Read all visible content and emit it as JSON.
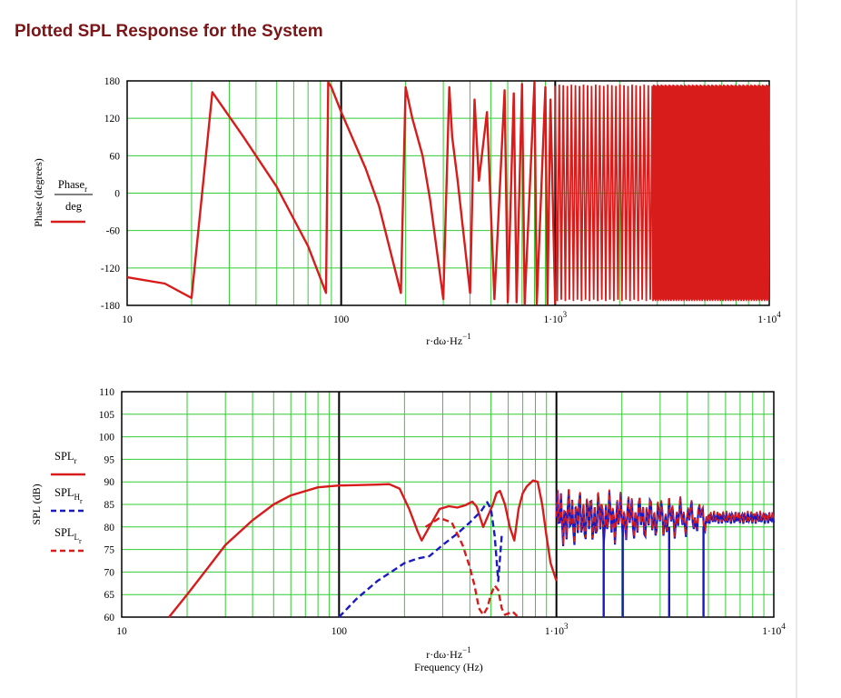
{
  "page_title": "Plotted SPL Response for the System",
  "colors": {
    "red": "#d81b1b",
    "blue": "#1a1ac0",
    "grid": "#33cc33",
    "decade": "#000000"
  },
  "chart_data": [
    {
      "type": "line",
      "xscale": "log",
      "xlim": [
        10,
        10000
      ],
      "ylim": [
        -180,
        180
      ],
      "yticks": [
        "180",
        "120",
        "60",
        "0",
        "-60",
        "-120",
        "-180"
      ],
      "xticks": [
        "10",
        "100",
        "1·10",
        "1·10"
      ],
      "xtick_exp": [
        "",
        "",
        "3",
        "4"
      ],
      "xlabel": "r·dω·Hz",
      "xlabel_exp": "−1",
      "ylabel": "Phase (degrees)",
      "legend": {
        "num": "Phase",
        "num_sub": "r",
        "den": "deg"
      },
      "series": [
        {
          "name": "Phase",
          "color": "#d81b1b",
          "x": [
            10,
            15,
            20,
            25,
            35,
            50,
            70,
            85,
            87,
            90,
            100,
            130,
            150,
            190,
            200,
            215,
            240,
            260,
            300,
            320,
            330,
            350,
            400,
            420,
            440,
            480,
            520,
            580,
            600,
            640,
            660,
            700,
            720,
            800,
            820,
            900,
            920,
            950,
            1000
          ],
          "y": [
            -135,
            -145,
            -168,
            162,
            90,
            10,
            -85,
            -160,
            178,
            170,
            130,
            40,
            -20,
            -160,
            170,
            120,
            60,
            -10,
            -170,
            170,
            90,
            20,
            -160,
            150,
            20,
            130,
            -170,
            165,
            -175,
            160,
            -175,
            175,
            -178,
            178,
            -178,
            170,
            -178,
            150,
            -178
          ]
        }
      ]
    },
    {
      "type": "line",
      "xscale": "log",
      "xlim": [
        10,
        10000
      ],
      "ylim": [
        60,
        110
      ],
      "yticks": [
        "110",
        "105",
        "100",
        "95",
        "90",
        "85",
        "80",
        "75",
        "70",
        "65",
        "60"
      ],
      "xticks": [
        "10",
        "100",
        "1·10",
        "1·10"
      ],
      "xtick_exp": [
        "",
        "",
        "3",
        "4"
      ],
      "xlabel": "r·dω·Hz",
      "xlabel_exp": "−1",
      "xlabel2": "Frequency (Hz)",
      "ylabel": "SPL (dB)",
      "legend": [
        {
          "label": "SPL",
          "sub": "r",
          "subsub": "",
          "color": "#d81b1b",
          "dash": false
        },
        {
          "label": "SPL",
          "sub": "H",
          "subsub": "r",
          "color": "#1a1ac0",
          "dash": true
        },
        {
          "label": "SPL",
          "sub": "L",
          "subsub": "r",
          "color": "#d81b1b",
          "dash": true
        }
      ],
      "series": [
        {
          "name": "SPL",
          "color": "#d81b1b",
          "dash": false,
          "x": [
            16.5,
            20,
            25,
            30,
            40,
            50,
            60,
            80,
            100,
            150,
            170,
            190,
            210,
            230,
            240,
            260,
            290,
            320,
            350,
            380,
            410,
            430,
            460,
            490,
            510,
            530,
            550,
            580,
            610,
            640,
            670,
            700,
            730,
            780,
            820,
            860,
            900,
            940,
            1000
          ],
          "y": [
            60,
            65,
            71,
            76,
            81.5,
            85,
            87,
            88.8,
            89.2,
            89.4,
            89.5,
            88.5,
            84,
            79,
            77,
            80,
            84,
            84.6,
            84.3,
            84.8,
            85.6,
            84.5,
            80,
            83,
            85,
            87.5,
            88,
            85,
            80,
            77,
            84,
            87.5,
            89,
            90.3,
            90,
            85,
            78,
            72,
            68
          ]
        },
        {
          "name": "SPL_H",
          "color": "#1a1ac0",
          "dash": true,
          "x": [
            100,
            120,
            150,
            180,
            200,
            230,
            260,
            300,
            350,
            400,
            450,
            480,
            500,
            520,
            540,
            560
          ],
          "y": [
            60,
            64,
            68,
            70.5,
            72,
            73,
            73.5,
            76,
            78.5,
            81,
            83.5,
            85.5,
            84,
            78,
            68,
            78
          ]
        },
        {
          "name": "SPL_L",
          "color": "#d81b1b",
          "dash": true,
          "x": [
            250,
            290,
            330,
            370,
            400,
            420,
            440,
            460,
            480,
            500,
            520,
            540,
            560,
            580,
            600,
            630,
            660
          ],
          "y": [
            80,
            82,
            81,
            76,
            71,
            67,
            62,
            60.5,
            62,
            65,
            67,
            66,
            62,
            60.5,
            60.8,
            61.2,
            60.2
          ]
        }
      ]
    }
  ]
}
